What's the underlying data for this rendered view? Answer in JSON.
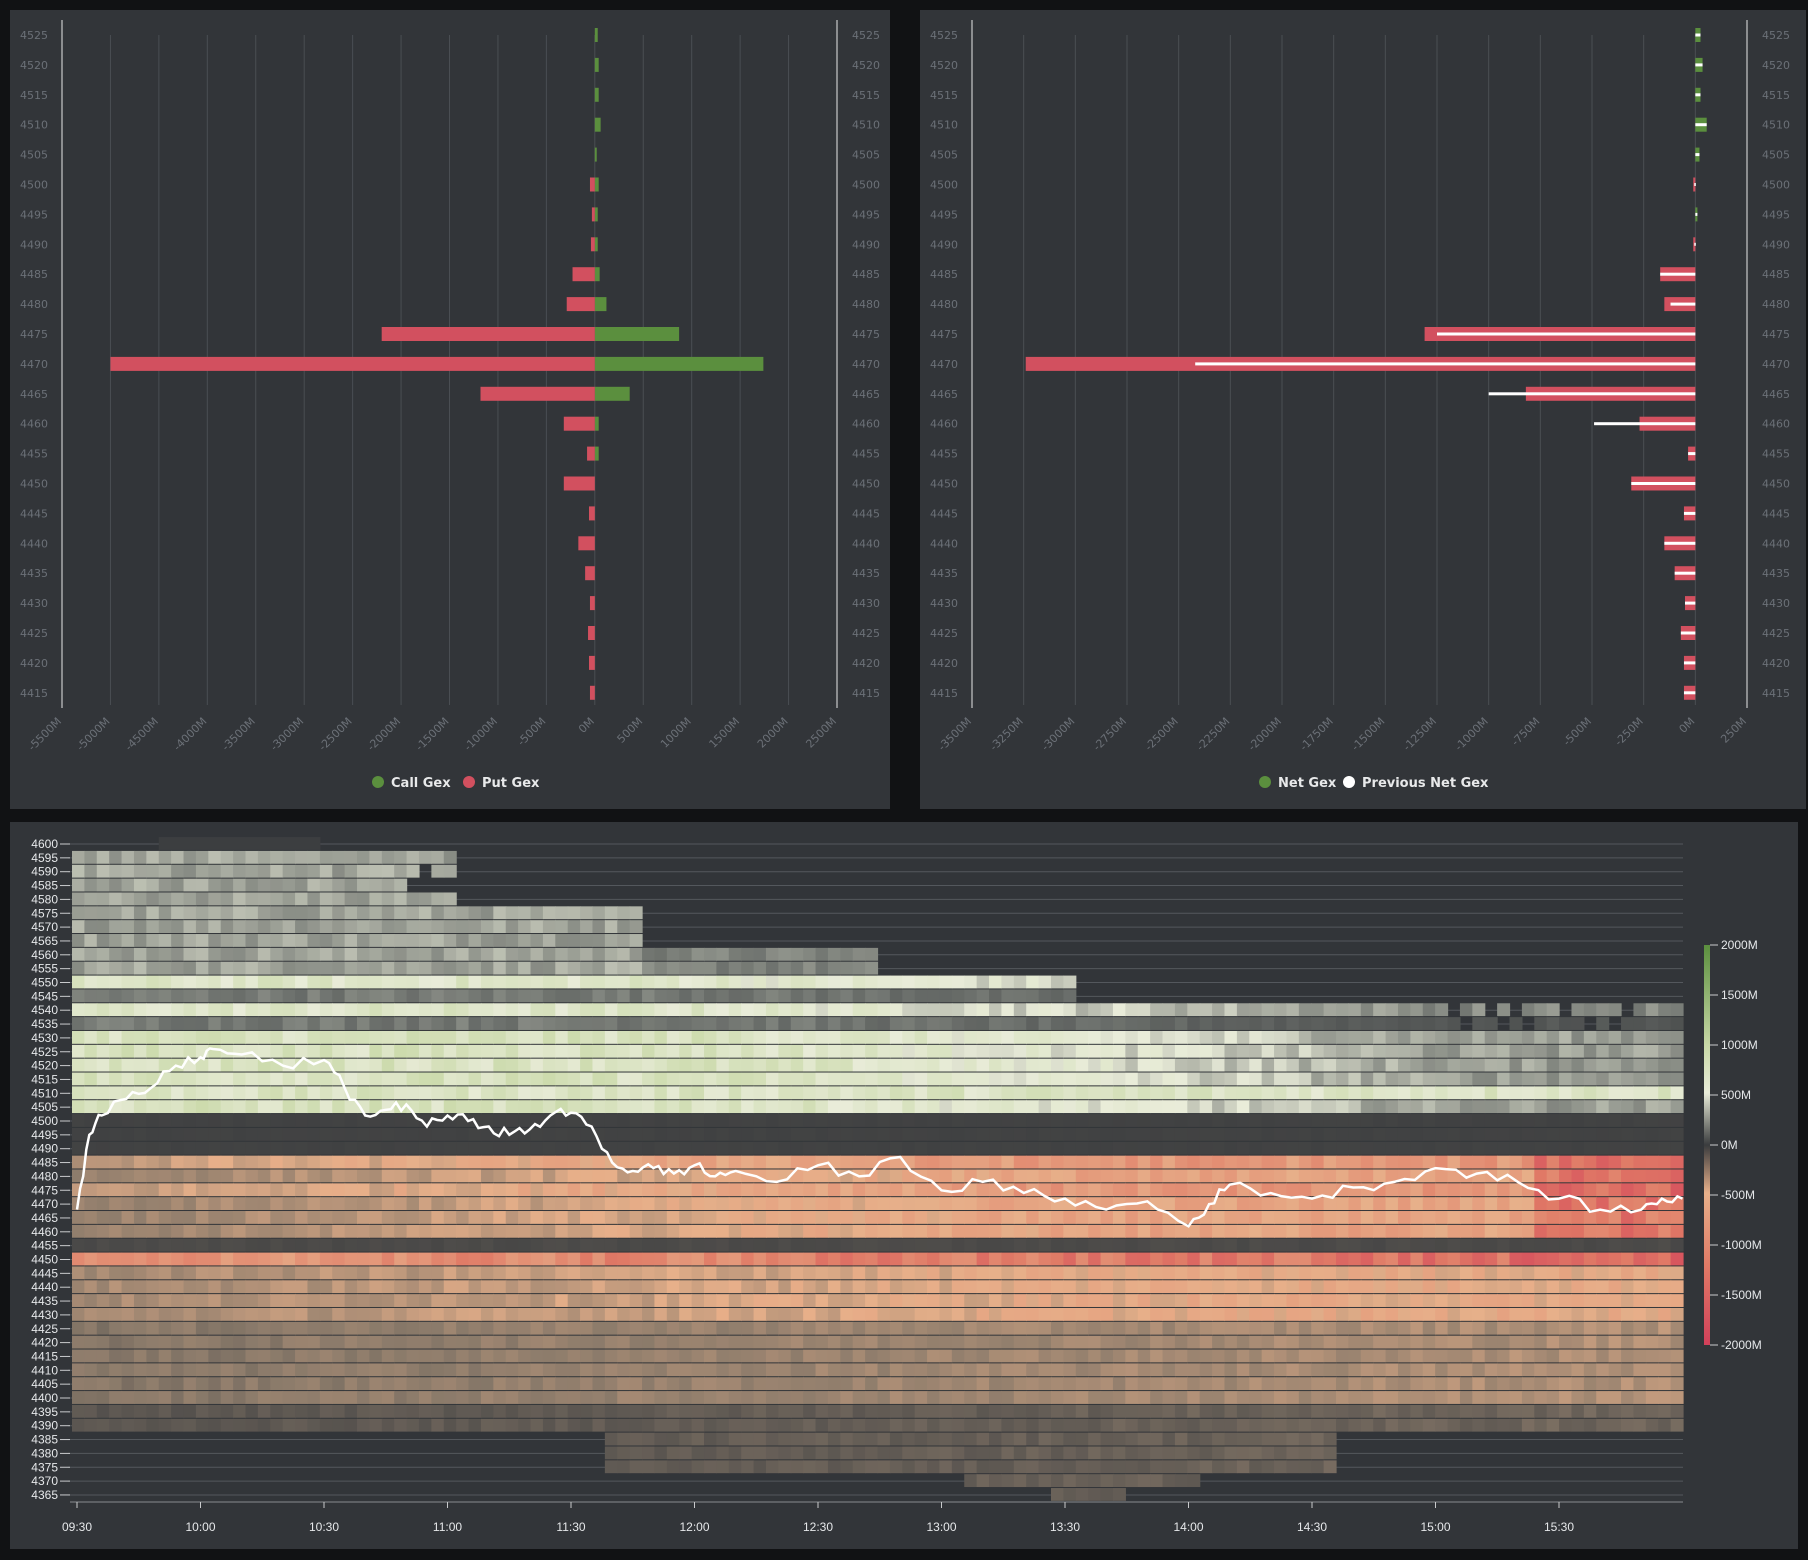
{
  "colors": {
    "call": "#5b8f3e",
    "put": "#d2505f",
    "net_pos": "#5b8f3e",
    "net_neg": "#d2505f",
    "prev": "#ffffff",
    "price_line": "#ffffff"
  },
  "strikes": [
    4525,
    4520,
    4515,
    4510,
    4505,
    4500,
    4495,
    4490,
    4485,
    4480,
    4475,
    4470,
    4465,
    4460,
    4455,
    4450,
    4445,
    4440,
    4435,
    4430,
    4425,
    4420,
    4415
  ],
  "chart_data": [
    {
      "type": "bar",
      "orientation": "horizontal",
      "categories": [
        4525,
        4520,
        4515,
        4510,
        4505,
        4500,
        4495,
        4490,
        4485,
        4480,
        4475,
        4470,
        4465,
        4460,
        4455,
        4450,
        4445,
        4440,
        4435,
        4430,
        4425,
        4420,
        4415
      ],
      "series": [
        {
          "name": "Call Gex",
          "values": [
            30,
            40,
            40,
            60,
            20,
            40,
            30,
            30,
            50,
            120,
            870,
            1740,
            360,
            40,
            40,
            0,
            0,
            0,
            0,
            0,
            0,
            0,
            0
          ]
        },
        {
          "name": "Put Gex",
          "values": [
            0,
            0,
            0,
            0,
            0,
            -50,
            -30,
            -40,
            -230,
            -290,
            -2200,
            -5000,
            -1180,
            -320,
            -80,
            -320,
            -60,
            -170,
            -100,
            -50,
            -70,
            -60,
            -50
          ]
        }
      ],
      "x_ticks": [
        "-5500M",
        "-5000M",
        "-4500M",
        "-4000M",
        "-3500M",
        "-3000M",
        "-2500M",
        "-2000M",
        "-1500M",
        "-1000M",
        "-500M",
        "0M",
        "500M",
        "1000M",
        "1500M",
        "2000M",
        "2500M"
      ],
      "xlim": [
        -5500,
        2500
      ],
      "legend": [
        "Call Gex",
        "Put Gex"
      ],
      "legend_position": "bottom-center",
      "grid": true
    },
    {
      "type": "bar",
      "orientation": "horizontal",
      "categories": [
        4525,
        4520,
        4515,
        4510,
        4505,
        4500,
        4495,
        4490,
        4485,
        4480,
        4475,
        4470,
        4465,
        4460,
        4455,
        4450,
        4445,
        4440,
        4435,
        4430,
        4425,
        4420,
        4415
      ],
      "series": [
        {
          "name": "Net Gex",
          "values": [
            25,
            35,
            25,
            55,
            20,
            -10,
            10,
            -10,
            -170,
            -150,
            -1310,
            -3240,
            -820,
            -270,
            -35,
            -310,
            -55,
            -150,
            -100,
            -50,
            -70,
            -55,
            -55
          ]
        },
        {
          "name": "Previous Net Gex",
          "values": [
            25,
            35,
            25,
            55,
            20,
            -5,
            10,
            -5,
            -170,
            -120,
            -1250,
            -2420,
            -1000,
            -490,
            -35,
            -310,
            -55,
            -150,
            -100,
            -50,
            -70,
            -55,
            -55
          ]
        }
      ],
      "x_ticks": [
        "-3500M",
        "-3250M",
        "-3000M",
        "-2750M",
        "-2500M",
        "-2250M",
        "-2000M",
        "-1750M",
        "-1500M",
        "-1250M",
        "-1000M",
        "-750M",
        "-500M",
        "-250M",
        "0M",
        "250M"
      ],
      "xlim": [
        -3500,
        250
      ],
      "legend": [
        "Net Gex",
        "Previous Net Gex"
      ],
      "legend_position": "bottom-center",
      "grid": true
    },
    {
      "type": "heatmap",
      "x_ticks": [
        "09:30",
        "10:00",
        "10:30",
        "11:00",
        "11:30",
        "12:00",
        "12:30",
        "13:00",
        "13:30",
        "14:00",
        "14:30",
        "15:00",
        "15:30"
      ],
      "y_ticks": [
        4600,
        4595,
        4590,
        4585,
        4580,
        4575,
        4570,
        4565,
        4560,
        4555,
        4550,
        4545,
        4540,
        4535,
        4530,
        4525,
        4520,
        4515,
        4510,
        4505,
        4500,
        4495,
        4490,
        4485,
        4480,
        4475,
        4470,
        4465,
        4460,
        4455,
        4450,
        4445,
        4440,
        4435,
        4430,
        4425,
        4420,
        4415,
        4410,
        4405,
        4400,
        4395,
        4390,
        4385,
        4380,
        4375,
        4370,
        4365
      ],
      "colorbar": {
        "ticks": [
          "2000M",
          "1500M",
          "1000M",
          "500M",
          "0M",
          "-500M",
          "-1000M",
          "-1500M",
          "-2000M"
        ],
        "range": [
          -2000,
          2000
        ]
      },
      "price_line": {
        "name": "price",
        "times": [
          "09:30",
          "09:33",
          "09:36",
          "09:42",
          "09:48",
          "09:54",
          "10:00",
          "10:03",
          "10:10",
          "10:20",
          "10:30",
          "10:35",
          "10:40",
          "10:45",
          "10:50",
          "10:55",
          "11:00",
          "11:05",
          "11:10",
          "11:15",
          "11:20",
          "11:25",
          "11:30",
          "11:35",
          "11:40",
          "11:45",
          "11:50",
          "11:55",
          "12:00",
          "12:05",
          "12:10",
          "12:20",
          "12:30",
          "12:40",
          "12:50",
          "13:00",
          "13:10",
          "13:20",
          "13:30",
          "13:40",
          "13:50",
          "14:00",
          "14:05",
          "14:10",
          "14:20",
          "14:30",
          "14:40",
          "14:50",
          "15:00",
          "15:10",
          "15:20",
          "15:30",
          "15:40",
          "15:50",
          "15:55",
          "16:00"
        ],
        "values": [
          4468,
          4495,
          4502,
          4508,
          4512,
          4520,
          4523,
          4526,
          4524,
          4520,
          4522,
          4512,
          4502,
          4504,
          4506,
          4498,
          4502,
          4500,
          4498,
          4495,
          4497,
          4502,
          4503,
          4498,
          4485,
          4482,
          4483,
          4481,
          4484,
          4480,
          4482,
          4478,
          4484,
          4480,
          4487,
          4475,
          4478,
          4474,
          4472,
          4468,
          4471,
          4462,
          4470,
          4477,
          4474,
          4472,
          4476,
          4478,
          4483,
          4481,
          4478,
          4472,
          4468,
          4468,
          4472,
          4472
        ]
      }
    }
  ],
  "legends": {
    "p1": {
      "call": "Call Gex",
      "put": "Put Gex"
    },
    "p2": {
      "net": "Net Gex",
      "prev": "Previous Net Gex"
    }
  }
}
